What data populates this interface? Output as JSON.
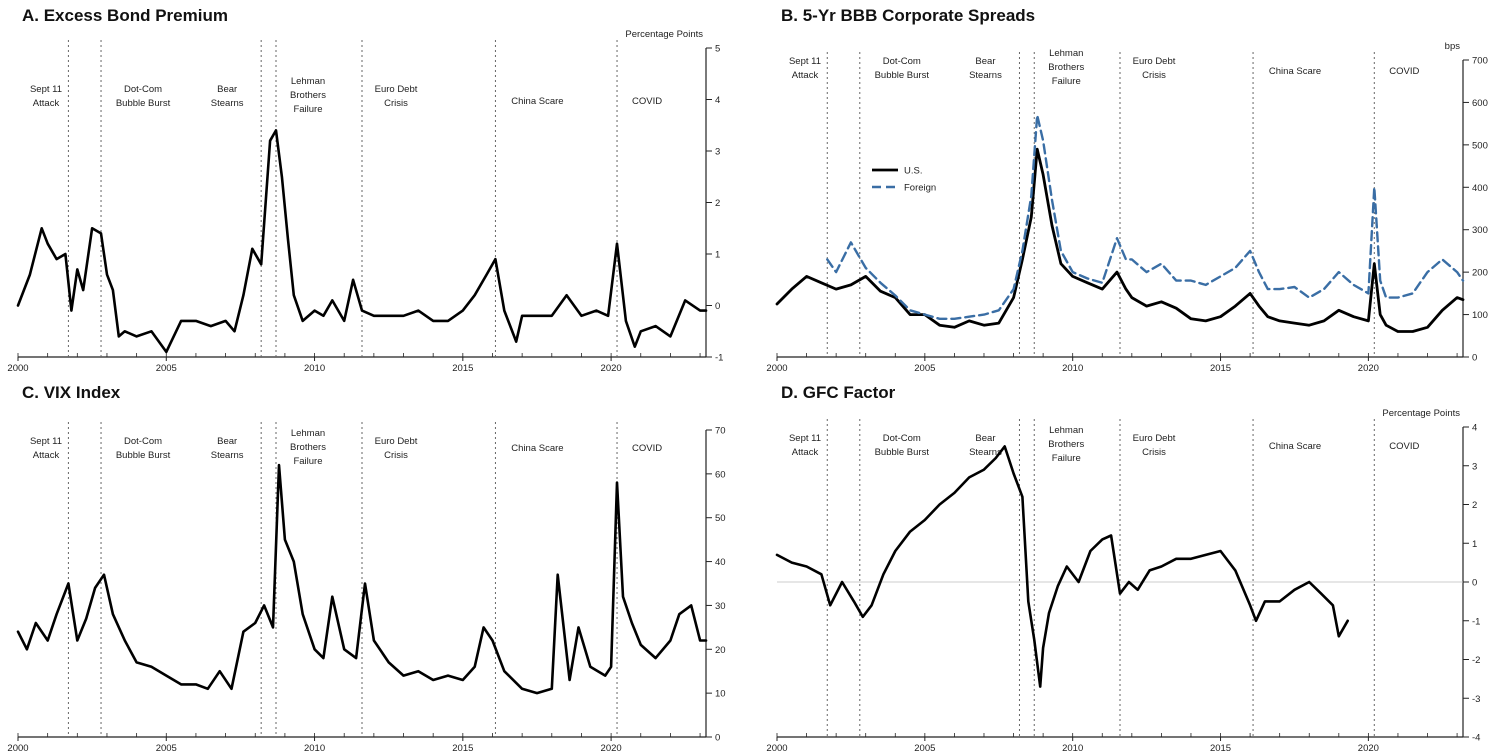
{
  "chart_data": [
    {
      "id": "A",
      "type": "line",
      "title": "A. Excess Bond Premium",
      "unit": "Percentage Points",
      "ylim": [
        -1,
        5
      ],
      "yticks": [
        -1,
        0,
        1,
        2,
        3,
        4,
        5
      ],
      "xlim": [
        2000,
        2023.2
      ],
      "xticks": [
        2000,
        2005,
        2010,
        2015,
        2020
      ],
      "grid": false,
      "events": [
        {
          "x": 2001.7,
          "label": [
            "Sept 11",
            "Attack"
          ]
        },
        {
          "x": 2002.8,
          "label": [
            "Dot-Com",
            "Bubble Burst"
          ]
        },
        {
          "x": 2008.2,
          "label": [
            "Bear",
            "Stearns"
          ]
        },
        {
          "x": 2008.7,
          "label": [
            "Lehman",
            "Brothers",
            "Failure"
          ]
        },
        {
          "x": 2011.6,
          "label": [
            "Euro Debt",
            "Crisis"
          ]
        },
        {
          "x": 2016.1,
          "label": [
            "China Scare"
          ]
        },
        {
          "x": 2020.2,
          "label": [
            "COVID"
          ]
        }
      ],
      "series": [
        {
          "color": "#000000",
          "dashed": false,
          "width": 2.6,
          "x": [
            2000.0,
            2000.4,
            2000.8,
            2001.0,
            2001.3,
            2001.6,
            2001.8,
            2002.0,
            2002.2,
            2002.5,
            2002.8,
            2003.0,
            2003.2,
            2003.4,
            2003.6,
            2004.0,
            2004.5,
            2005.0,
            2005.5,
            2006.0,
            2006.5,
            2007.0,
            2007.3,
            2007.6,
            2007.9,
            2008.2,
            2008.5,
            2008.7,
            2008.9,
            2009.1,
            2009.3,
            2009.6,
            2010.0,
            2010.3,
            2010.6,
            2011.0,
            2011.3,
            2011.6,
            2012.0,
            2012.5,
            2013.0,
            2013.5,
            2014.0,
            2014.5,
            2015.0,
            2015.4,
            2015.8,
            2016.1,
            2016.4,
            2016.8,
            2017.0,
            2017.5,
            2018.0,
            2018.5,
            2019.0,
            2019.5,
            2019.9,
            2020.2,
            2020.5,
            2020.8,
            2021.0,
            2021.5,
            2022.0,
            2022.5,
            2023.0,
            2023.2
          ],
          "y": [
            0.0,
            0.6,
            1.5,
            1.2,
            0.9,
            1.0,
            -0.1,
            0.7,
            0.3,
            1.5,
            1.4,
            0.6,
            0.3,
            -0.6,
            -0.5,
            -0.6,
            -0.5,
            -0.9,
            -0.3,
            -0.3,
            -0.4,
            -0.3,
            -0.5,
            0.2,
            1.1,
            0.8,
            3.2,
            3.4,
            2.5,
            1.3,
            0.2,
            -0.3,
            -0.1,
            -0.2,
            0.1,
            -0.3,
            0.5,
            -0.1,
            -0.2,
            -0.2,
            -0.2,
            -0.1,
            -0.3,
            -0.3,
            -0.1,
            0.2,
            0.6,
            0.9,
            -0.1,
            -0.7,
            -0.2,
            -0.2,
            -0.2,
            0.2,
            -0.2,
            -0.1,
            -0.2,
            1.2,
            -0.3,
            -0.8,
            -0.5,
            -0.4,
            -0.6,
            0.1,
            -0.1,
            -0.1
          ]
        }
      ]
    },
    {
      "id": "B",
      "type": "line",
      "title": "B. 5-Yr BBB Corporate Spreads",
      "unit": "bps",
      "ylim": [
        0,
        700
      ],
      "yticks": [
        0,
        100,
        200,
        300,
        400,
        500,
        600,
        700
      ],
      "xlim": [
        2000,
        2023.2
      ],
      "xticks": [
        2000,
        2005,
        2010,
        2015,
        2020
      ],
      "grid": false,
      "legend": {
        "placement": "center-left",
        "entries": [
          "U.S.",
          "Foreign"
        ]
      },
      "events": [
        {
          "x": 2001.7,
          "label": [
            "Sept 11",
            "Attack"
          ]
        },
        {
          "x": 2002.8,
          "label": [
            "Dot-Com",
            "Bubble Burst"
          ]
        },
        {
          "x": 2008.2,
          "label": [
            "Bear",
            "Stearns"
          ]
        },
        {
          "x": 2008.7,
          "label": [
            "Lehman",
            "Brothers",
            "Failure"
          ]
        },
        {
          "x": 2011.6,
          "label": [
            "Euro Debt",
            "Crisis"
          ]
        },
        {
          "x": 2016.1,
          "label": [
            "China Scare"
          ]
        },
        {
          "x": 2020.2,
          "label": [
            "COVID"
          ]
        }
      ],
      "series": [
        {
          "color": "#000000",
          "dashed": false,
          "width": 2.8,
          "x": [
            2000.0,
            2000.5,
            2001.0,
            2001.5,
            2002.0,
            2002.5,
            2003.0,
            2003.5,
            2004.0,
            2004.5,
            2005.0,
            2005.5,
            2006.0,
            2006.5,
            2007.0,
            2007.5,
            2008.0,
            2008.3,
            2008.6,
            2008.8,
            2009.0,
            2009.3,
            2009.6,
            2010.0,
            2010.5,
            2011.0,
            2011.5,
            2011.8,
            2012.0,
            2012.5,
            2013.0,
            2013.5,
            2014.0,
            2014.5,
            2015.0,
            2015.5,
            2016.0,
            2016.3,
            2016.6,
            2017.0,
            2017.5,
            2018.0,
            2018.5,
            2019.0,
            2019.5,
            2020.0,
            2020.2,
            2020.4,
            2020.6,
            2021.0,
            2021.5,
            2022.0,
            2022.5,
            2023.0,
            2023.2
          ],
          "y": [
            125,
            160,
            190,
            175,
            160,
            170,
            190,
            155,
            140,
            100,
            100,
            75,
            70,
            85,
            75,
            80,
            140,
            230,
            330,
            490,
            430,
            310,
            220,
            190,
            175,
            160,
            200,
            160,
            140,
            120,
            130,
            115,
            90,
            85,
            95,
            120,
            150,
            120,
            95,
            85,
            80,
            75,
            85,
            110,
            95,
            85,
            220,
            100,
            75,
            60,
            60,
            70,
            110,
            140,
            135
          ]
        },
        {
          "color": "#3a6ea5",
          "dashed": true,
          "width": 2.4,
          "x": [
            2001.7,
            2002.0,
            2002.5,
            2003.0,
            2003.5,
            2004.0,
            2004.5,
            2005.0,
            2005.5,
            2006.0,
            2006.5,
            2007.0,
            2007.5,
            2008.0,
            2008.3,
            2008.6,
            2008.8,
            2009.0,
            2009.3,
            2009.6,
            2010.0,
            2010.5,
            2011.0,
            2011.5,
            2011.8,
            2012.0,
            2012.5,
            2013.0,
            2013.5,
            2014.0,
            2014.5,
            2015.0,
            2015.5,
            2016.0,
            2016.3,
            2016.6,
            2017.0,
            2017.5,
            2018.0,
            2018.5,
            2019.0,
            2019.5,
            2020.0,
            2020.2,
            2020.4,
            2020.6,
            2021.0,
            2021.5,
            2022.0,
            2022.5,
            2023.0,
            2023.2
          ],
          "y": [
            230,
            200,
            270,
            210,
            175,
            145,
            110,
            100,
            90,
            90,
            95,
            100,
            110,
            160,
            250,
            380,
            570,
            510,
            370,
            250,
            200,
            185,
            175,
            280,
            230,
            230,
            200,
            220,
            180,
            180,
            170,
            190,
            210,
            250,
            200,
            160,
            160,
            165,
            140,
            160,
            200,
            170,
            150,
            400,
            180,
            140,
            140,
            150,
            200,
            230,
            200,
            180
          ]
        }
      ]
    },
    {
      "id": "C",
      "type": "line",
      "title": "C. VIX Index",
      "unit": "",
      "ylim": [
        0,
        70
      ],
      "yticks": [
        0,
        10,
        20,
        30,
        40,
        50,
        60,
        70
      ],
      "xlim": [
        2000,
        2023.2
      ],
      "xticks": [
        2000,
        2005,
        2010,
        2015,
        2020
      ],
      "grid": false,
      "events": [
        {
          "x": 2001.7,
          "label": [
            "Sept 11",
            "Attack"
          ]
        },
        {
          "x": 2002.8,
          "label": [
            "Dot-Com",
            "Bubble Burst"
          ]
        },
        {
          "x": 2008.2,
          "label": [
            "Bear",
            "Stearns"
          ]
        },
        {
          "x": 2008.7,
          "label": [
            "Lehman",
            "Brothers",
            "Failure"
          ]
        },
        {
          "x": 2011.6,
          "label": [
            "Euro Debt",
            "Crisis"
          ]
        },
        {
          "x": 2016.1,
          "label": [
            "China Scare"
          ]
        },
        {
          "x": 2020.2,
          "label": [
            "COVID"
          ]
        }
      ],
      "series": [
        {
          "color": "#000000",
          "dashed": false,
          "width": 2.6,
          "x": [
            2000.0,
            2000.3,
            2000.6,
            2001.0,
            2001.3,
            2001.7,
            2002.0,
            2002.3,
            2002.6,
            2002.9,
            2003.2,
            2003.6,
            2004.0,
            2004.5,
            2005.0,
            2005.5,
            2006.0,
            2006.4,
            2006.8,
            2007.2,
            2007.6,
            2008.0,
            2008.3,
            2008.6,
            2008.8,
            2009.0,
            2009.3,
            2009.6,
            2010.0,
            2010.3,
            2010.6,
            2011.0,
            2011.4,
            2011.7,
            2012.0,
            2012.5,
            2013.0,
            2013.5,
            2014.0,
            2014.5,
            2015.0,
            2015.4,
            2015.7,
            2016.0,
            2016.4,
            2017.0,
            2017.5,
            2018.0,
            2018.2,
            2018.6,
            2018.9,
            2019.3,
            2019.8,
            2020.0,
            2020.2,
            2020.4,
            2020.7,
            2021.0,
            2021.5,
            2022.0,
            2022.3,
            2022.7,
            2023.0,
            2023.2
          ],
          "y": [
            24,
            20,
            26,
            22,
            28,
            35,
            22,
            27,
            34,
            37,
            28,
            22,
            17,
            16,
            14,
            12,
            12,
            11,
            15,
            11,
            24,
            26,
            30,
            25,
            62,
            45,
            40,
            28,
            20,
            18,
            32,
            20,
            18,
            35,
            22,
            17,
            14,
            15,
            13,
            14,
            13,
            16,
            25,
            22,
            15,
            11,
            10,
            11,
            37,
            13,
            25,
            16,
            14,
            16,
            58,
            32,
            26,
            21,
            18,
            22,
            28,
            30,
            22,
            22
          ]
        }
      ]
    },
    {
      "id": "D",
      "type": "line",
      "title": "D. GFC Factor",
      "unit": "Percentage Points",
      "ylim": [
        -4,
        4
      ],
      "yticks": [
        -4,
        -3,
        -2,
        -1,
        0,
        1,
        2,
        3,
        4
      ],
      "xlim": [
        2000,
        2023.2
      ],
      "xticks": [
        2000,
        2005,
        2010,
        2015,
        2020
      ],
      "grid": false,
      "events": [
        {
          "x": 2001.7,
          "label": [
            "Sept 11",
            "Attack"
          ]
        },
        {
          "x": 2002.8,
          "label": [
            "Dot-Com",
            "Bubble Burst"
          ]
        },
        {
          "x": 2008.2,
          "label": [
            "Bear",
            "Stearns"
          ]
        },
        {
          "x": 2008.7,
          "label": [
            "Lehman",
            "Brothers",
            "Failure"
          ]
        },
        {
          "x": 2011.6,
          "label": [
            "Euro Debt",
            "Crisis"
          ]
        },
        {
          "x": 2016.1,
          "label": [
            "China Scare"
          ]
        },
        {
          "x": 2020.2,
          "label": [
            "COVID"
          ]
        }
      ],
      "series": [
        {
          "color": "#000000",
          "dashed": false,
          "width": 2.6,
          "x": [
            2000.0,
            2000.5,
            2001.0,
            2001.5,
            2001.8,
            2002.2,
            2002.6,
            2002.9,
            2003.2,
            2003.6,
            2004.0,
            2004.5,
            2005.0,
            2005.5,
            2006.0,
            2006.5,
            2007.0,
            2007.4,
            2007.7,
            2008.0,
            2008.3,
            2008.5,
            2008.7,
            2008.9,
            2009.0,
            2009.2,
            2009.5,
            2009.8,
            2010.2,
            2010.6,
            2011.0,
            2011.3,
            2011.6,
            2011.9,
            2012.2,
            2012.6,
            2013.0,
            2013.5,
            2014.0,
            2014.5,
            2015.0,
            2015.5,
            2016.0,
            2016.2,
            2016.5,
            2017.0,
            2017.5,
            2018.0,
            2018.4,
            2018.8,
            2019.0,
            2019.3
          ],
          "y": [
            0.7,
            0.5,
            0.4,
            0.2,
            -0.6,
            0.0,
            -0.5,
            -0.9,
            -0.6,
            0.2,
            0.8,
            1.3,
            1.6,
            2.0,
            2.3,
            2.7,
            2.9,
            3.2,
            3.5,
            2.8,
            2.2,
            -0.5,
            -1.5,
            -2.7,
            -1.7,
            -0.8,
            -0.1,
            0.4,
            0.0,
            0.8,
            1.1,
            1.2,
            -0.3,
            0.0,
            -0.2,
            0.3,
            0.4,
            0.6,
            0.6,
            0.7,
            0.8,
            0.3,
            -0.6,
            -1.0,
            -0.5,
            -0.5,
            -0.2,
            0.0,
            -0.3,
            -0.6,
            -1.4,
            -1.0
          ]
        }
      ]
    }
  ],
  "legend_labels": {
    "us": "U.S.",
    "foreign": "Foreign"
  }
}
